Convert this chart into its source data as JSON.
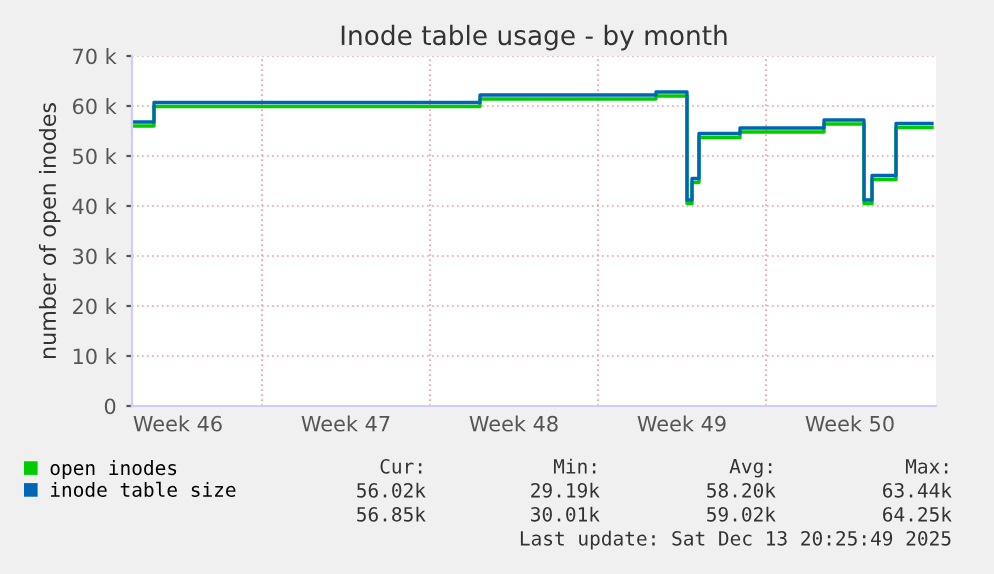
{
  "chart_data": {
    "type": "step",
    "title": "Inode table usage - by month",
    "ylabel": "number of open inodes",
    "xlim": [
      "2025-11-11T14:00",
      "2025-12-15T02:00"
    ],
    "xticks": [
      {
        "value": "2025-11-13T12:00",
        "label": "Week 46"
      },
      {
        "value": "2025-11-17",
        "label": null
      },
      {
        "value": "2025-11-20T12:00",
        "label": "Week 47"
      },
      {
        "value": "2025-11-24",
        "label": null
      },
      {
        "value": "2025-11-27T12:00",
        "label": "Week 48"
      },
      {
        "value": "2025-12-01",
        "label": null
      },
      {
        "value": "2025-12-04T12:00",
        "label": "Week 49"
      },
      {
        "value": "2025-12-08",
        "label": null
      },
      {
        "value": "2025-12-11T12:00",
        "label": "Week 50"
      }
    ],
    "ylim": [
      0,
      70000
    ],
    "yticks": [
      {
        "value": 0,
        "label": "0"
      },
      {
        "value": 10000,
        "label": "10 k"
      },
      {
        "value": 20000,
        "label": "20 k"
      },
      {
        "value": 30000,
        "label": "30 k"
      },
      {
        "value": 40000,
        "label": "40 k"
      },
      {
        "value": 50000,
        "label": "50 k"
      },
      {
        "value": 60000,
        "label": "60 k"
      },
      {
        "value": 70000,
        "label": "70 k"
      }
    ],
    "x": [
      "2025-11-11T14:00",
      "2025-11-12T12:00",
      "2025-11-26T02:00",
      "2025-12-03T10:00",
      "2025-12-04T17:00",
      "2025-12-04T22:00",
      "2025-12-05T05:00",
      "2025-12-06T22:00",
      "2025-12-10T10:00",
      "2025-12-12T02:00",
      "2025-12-12T10:00",
      "2025-12-13T10:00",
      "2025-12-14T22:00"
    ],
    "series": [
      {
        "name": "open inodes",
        "color": "#00cc00",
        "values": [
          56000,
          59900,
          61400,
          62000,
          40500,
          44700,
          53700,
          54800,
          56400,
          40500,
          45300,
          55700,
          55700
        ]
      },
      {
        "name": "inode table size",
        "color": "#0066b3",
        "values": [
          56800,
          60700,
          62200,
          62800,
          41200,
          45500,
          54500,
          55600,
          57200,
          41200,
          46100,
          56500,
          56500
        ]
      }
    ],
    "grid": true,
    "legend": "bottom",
    "annotations": [
      "Cur:",
      "Min:",
      "Avg:",
      "Max:",
      "56.02k",
      "29.19k",
      "58.20k",
      "63.44k",
      "56.85k",
      "30.01k",
      "59.02k",
      "64.25k",
      "Last update: Sat Dec 13 20:25:49 2025"
    ]
  }
}
